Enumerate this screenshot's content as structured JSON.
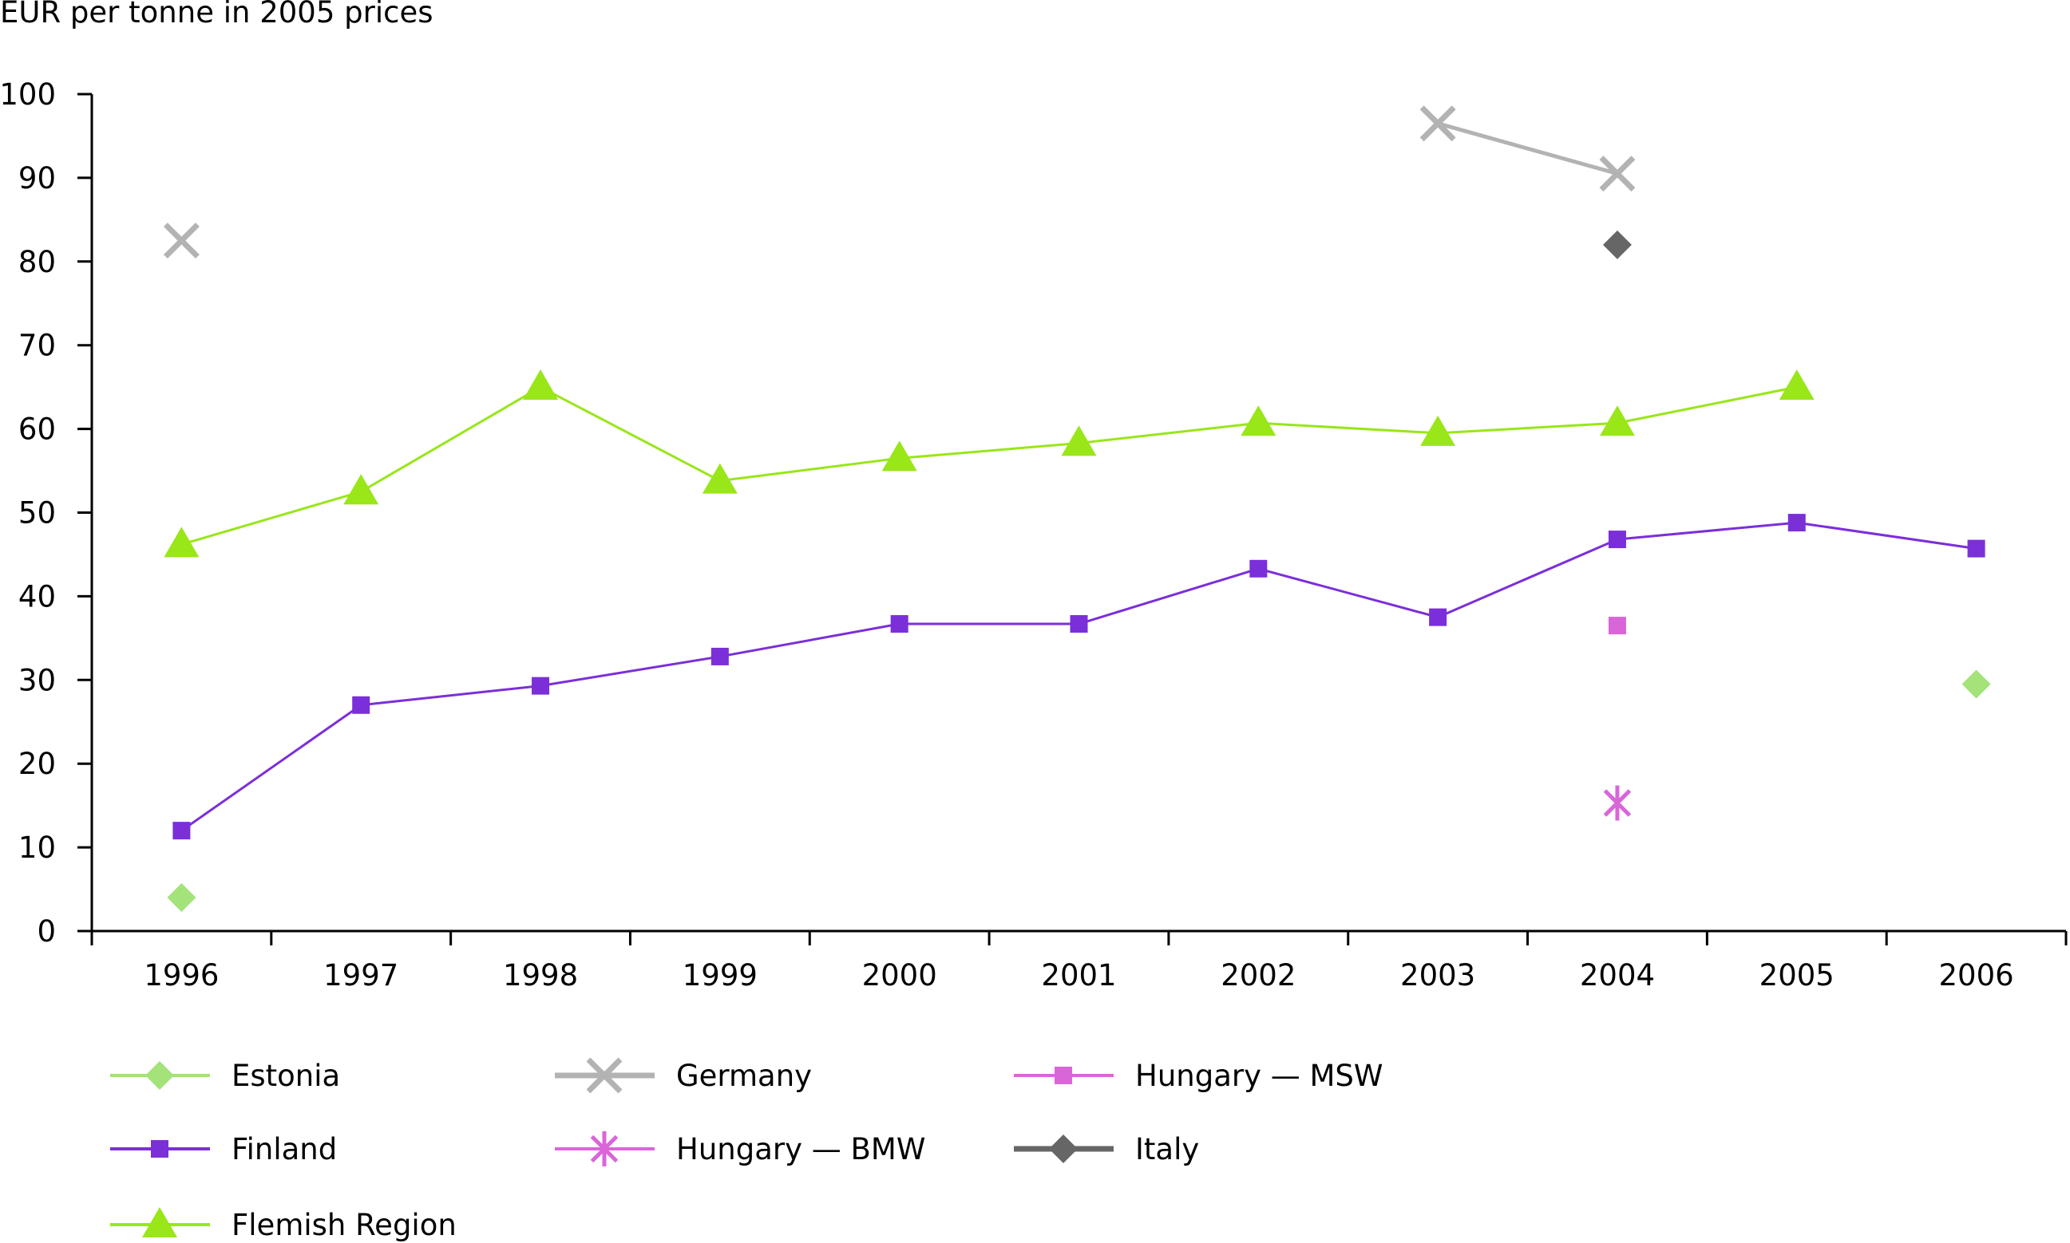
{
  "chart_data": {
    "type": "line",
    "ylabel": "EUR per tonne in 2005 prices",
    "xlabel": "",
    "title": "",
    "ylim": [
      0,
      100
    ],
    "yticks": [
      0,
      10,
      20,
      30,
      40,
      50,
      60,
      70,
      80,
      90,
      100
    ],
    "categories": [
      "1996",
      "1997",
      "1998",
      "1999",
      "2000",
      "2001",
      "2002",
      "2003",
      "2004",
      "2005",
      "2006"
    ],
    "grid": false,
    "legend_position": "bottom",
    "series": [
      {
        "name": "Estonia",
        "marker": "diamond",
        "color": "#a3e37a",
        "values": [
          4,
          null,
          null,
          null,
          null,
          null,
          null,
          null,
          null,
          null,
          29.5
        ]
      },
      {
        "name": "Germany",
        "marker": "x",
        "color": "#b3b3b3",
        "values": [
          82.5,
          null,
          null,
          null,
          null,
          null,
          null,
          96.5,
          90.5,
          null,
          null
        ]
      },
      {
        "name": "Hungary — MSW",
        "marker": "square",
        "color": "#d966d9",
        "values": [
          null,
          null,
          null,
          null,
          null,
          null,
          null,
          null,
          36.5,
          null,
          null
        ]
      },
      {
        "name": "Finland",
        "marker": "square",
        "color": "#7b2fd9",
        "values": [
          12,
          27,
          29.3,
          32.8,
          36.7,
          36.7,
          43.3,
          37.5,
          46.8,
          48.8,
          45.7
        ]
      },
      {
        "name": "Hungary — BMW",
        "marker": "asterisk",
        "color": "#d966d9",
        "values": [
          null,
          null,
          null,
          null,
          null,
          null,
          null,
          null,
          15.3,
          null,
          null
        ]
      },
      {
        "name": "Italy",
        "marker": "diamond",
        "color": "#666666",
        "values": [
          null,
          null,
          null,
          null,
          null,
          null,
          null,
          null,
          82,
          null,
          null
        ]
      },
      {
        "name": "Flemish Region",
        "marker": "triangle",
        "color": "#99e619",
        "values": [
          46.2,
          52.5,
          65,
          53.8,
          56.5,
          58.3,
          60.7,
          59.5,
          60.7,
          65,
          null
        ]
      }
    ]
  }
}
